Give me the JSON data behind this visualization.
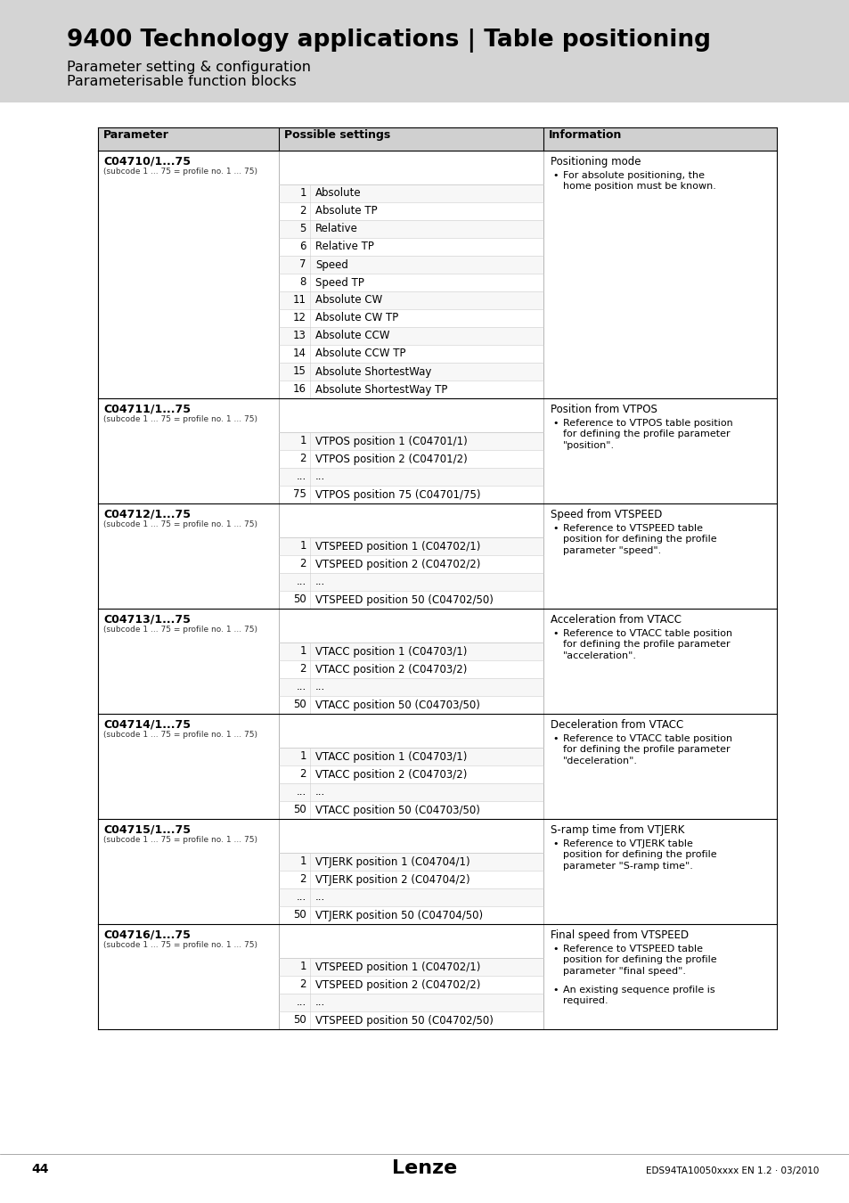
{
  "title": "9400 Technology applications | Table positioning",
  "subtitle1": "Parameter setting & configuration",
  "subtitle2": "Parameterisable function blocks",
  "headers": [
    "Parameter",
    "Possible settings",
    "Information"
  ],
  "rows": [
    {
      "param": "C04710/1...75",
      "subcode": "(subcode 1 ... 75 = profile no. 1 ... 75)",
      "settings": [
        [
          "1",
          "Absolute"
        ],
        [
          "2",
          "Absolute TP"
        ],
        [
          "5",
          "Relative"
        ],
        [
          "6",
          "Relative TP"
        ],
        [
          "7",
          "Speed"
        ],
        [
          "8",
          "Speed TP"
        ],
        [
          "11",
          "Absolute CW"
        ],
        [
          "12",
          "Absolute CW TP"
        ],
        [
          "13",
          "Absolute CCW"
        ],
        [
          "14",
          "Absolute CCW TP"
        ],
        [
          "15",
          "Absolute ShortestWay"
        ],
        [
          "16",
          "Absolute ShortestWay TP"
        ]
      ],
      "info_title": "Positioning mode",
      "info_bullets": [
        "For absolute positioning, the\nhome position must be known."
      ]
    },
    {
      "param": "C04711/1...75",
      "subcode": "(subcode 1 ... 75 = profile no. 1 ... 75)",
      "settings": [
        [
          "1",
          "VTPOS position 1 (C04701/1)"
        ],
        [
          "2",
          "VTPOS position 2 (C04701/2)"
        ],
        [
          "...",
          "..."
        ],
        [
          "75",
          "VTPOS position 75 (C04701/75)"
        ]
      ],
      "info_title": "Position from VTPOS",
      "info_bullets": [
        "Reference to VTPOS table position\nfor defining the profile parameter\n\"position\"."
      ]
    },
    {
      "param": "C04712/1...75",
      "subcode": "(subcode 1 ... 75 = profile no. 1 ... 75)",
      "settings": [
        [
          "1",
          "VTSPEED position 1 (C04702/1)"
        ],
        [
          "2",
          "VTSPEED position 2 (C04702/2)"
        ],
        [
          "...",
          "..."
        ],
        [
          "50",
          "VTSPEED position 50 (C04702/50)"
        ]
      ],
      "info_title": "Speed from VTSPEED",
      "info_bullets": [
        "Reference to VTSPEED table\nposition for defining the profile\nparameter \"speed\"."
      ]
    },
    {
      "param": "C04713/1...75",
      "subcode": "(subcode 1 ... 75 = profile no. 1 ... 75)",
      "settings": [
        [
          "1",
          "VTACC position 1 (C04703/1)"
        ],
        [
          "2",
          "VTACC position 2 (C04703/2)"
        ],
        [
          "...",
          "..."
        ],
        [
          "50",
          "VTACC position 50 (C04703/50)"
        ]
      ],
      "info_title": "Acceleration from VTACC",
      "info_bullets": [
        "Reference to VTACC table position\nfor defining the profile parameter\n\"acceleration\"."
      ]
    },
    {
      "param": "C04714/1...75",
      "subcode": "(subcode 1 ... 75 = profile no. 1 ... 75)",
      "settings": [
        [
          "1",
          "VTACC position 1 (C04703/1)"
        ],
        [
          "2",
          "VTACC position 2 (C04703/2)"
        ],
        [
          "...",
          "..."
        ],
        [
          "50",
          "VTACC position 50 (C04703/50)"
        ]
      ],
      "info_title": "Deceleration from VTACC",
      "info_bullets": [
        "Reference to VTACC table position\nfor defining the profile parameter\n\"deceleration\"."
      ]
    },
    {
      "param": "C04715/1...75",
      "subcode": "(subcode 1 ... 75 = profile no. 1 ... 75)",
      "settings": [
        [
          "1",
          "VTJERK position 1 (C04704/1)"
        ],
        [
          "2",
          "VTJERK position 2 (C04704/2)"
        ],
        [
          "...",
          "..."
        ],
        [
          "50",
          "VTJERK position 50 (C04704/50)"
        ]
      ],
      "info_title": "S-ramp time from VTJERK",
      "info_bullets": [
        "Reference to VTJERK table\nposition for defining the profile\nparameter \"S-ramp time\"."
      ]
    },
    {
      "param": "C04716/1...75",
      "subcode": "(subcode 1 ... 75 = profile no. 1 ... 75)",
      "settings": [
        [
          "1",
          "VTSPEED position 1 (C04702/1)"
        ],
        [
          "2",
          "VTSPEED position 2 (C04702/2)"
        ],
        [
          "...",
          "..."
        ],
        [
          "50",
          "VTSPEED position 50 (C04702/50)"
        ]
      ],
      "info_title": "Final speed from VTSPEED",
      "info_bullets": [
        "Reference to VTSPEED table\nposition for defining the profile\nparameter \"final speed\".",
        "An existing sequence profile is\nrequired."
      ]
    }
  ],
  "footer_page": "44",
  "footer_center": "Lenze",
  "footer_right": "EDS94TA10050xxxx EN 1.2 · 03/2010",
  "page_bg": "#f0f0f0",
  "header_banner_bg": "#d4d4d4",
  "content_bg": "#ffffff",
  "table_header_bg": "#d0d0d0",
  "row_divider_color": "#bbbbbb",
  "setting_line_color": "#cccccc"
}
